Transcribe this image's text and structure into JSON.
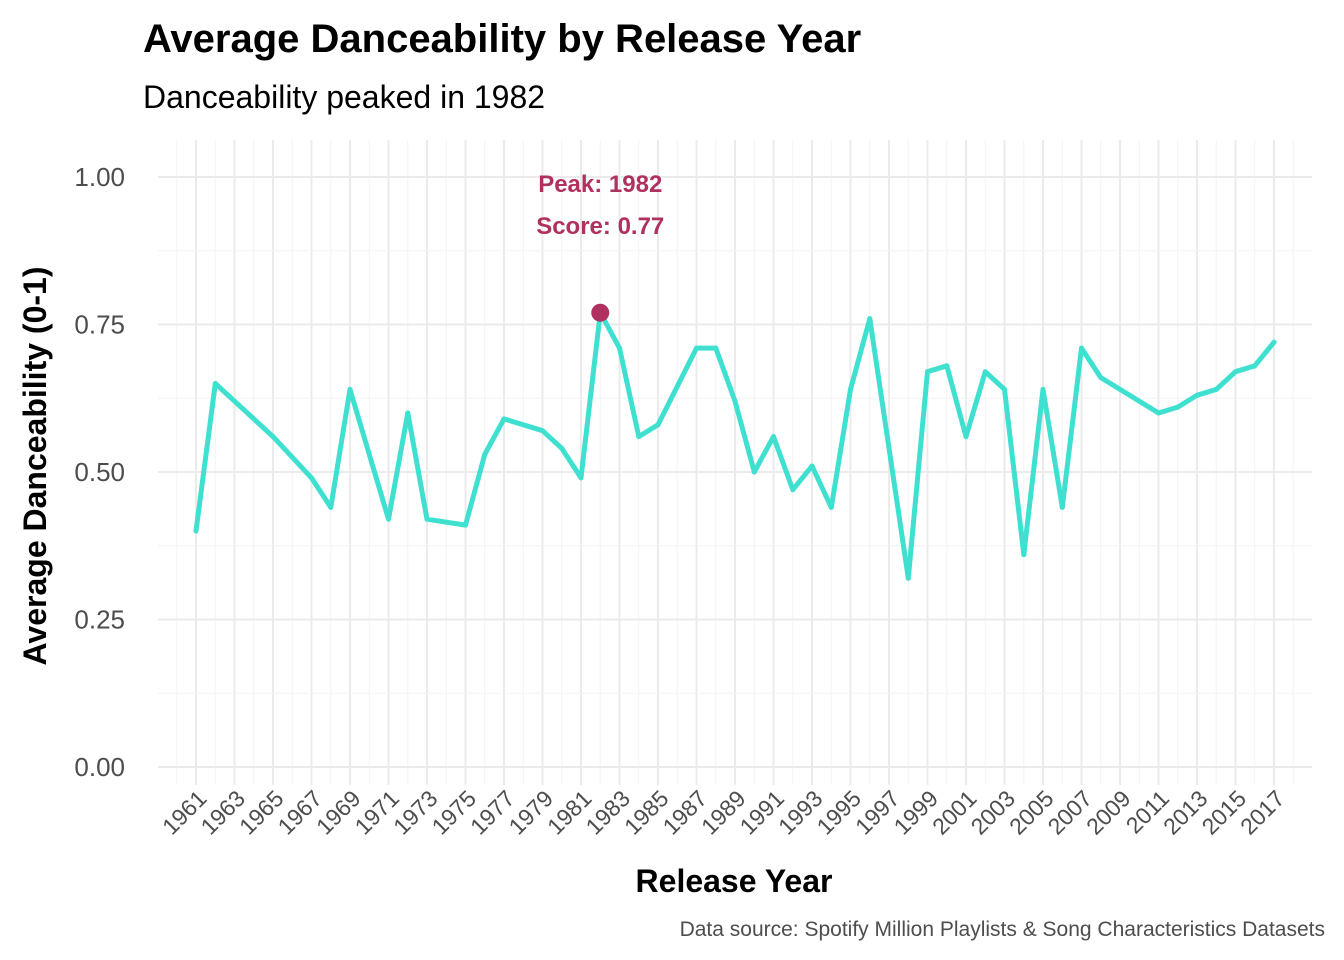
{
  "chart_data": {
    "type": "line",
    "title": "Average Danceability by Release Year",
    "subtitle": "Danceability peaked in 1982",
    "xlabel": "Release Year",
    "ylabel": "Average Danceability (0-1)",
    "caption": "Data source: Spotify Million Playlists & Song Characteristics Datasets",
    "ylim": [
      0,
      1
    ],
    "yticks": [
      "0.00",
      "0.25",
      "0.50",
      "0.75",
      "1.00"
    ],
    "xlim": [
      1961,
      2017
    ],
    "xticks": [
      "1961",
      "1963",
      "1965",
      "1967",
      "1969",
      "1971",
      "1973",
      "1975",
      "1977",
      "1979",
      "1981",
      "1983",
      "1985",
      "1987",
      "1989",
      "1991",
      "1993",
      "1995",
      "1997",
      "1999",
      "2001",
      "2003",
      "2005",
      "2007",
      "2009",
      "2011",
      "2013",
      "2015",
      "2017"
    ],
    "grid": true,
    "line_color": "#40E0D0",
    "highlight_color": "#B03060",
    "x": [
      1961,
      1962,
      1965,
      1967,
      1968,
      1969,
      1971,
      1972,
      1973,
      1975,
      1976,
      1977,
      1979,
      1980,
      1981,
      1982,
      1983,
      1984,
      1985,
      1987,
      1988,
      1989,
      1990,
      1991,
      1992,
      1993,
      1994,
      1995,
      1996,
      1998,
      1999,
      2000,
      2001,
      2002,
      2003,
      2004,
      2005,
      2006,
      2007,
      2008,
      2011,
      2012,
      2013,
      2014,
      2015,
      2016,
      2017
    ],
    "values": [
      0.4,
      0.65,
      0.56,
      0.49,
      0.44,
      0.64,
      0.42,
      0.6,
      0.42,
      0.41,
      0.53,
      0.59,
      0.57,
      0.54,
      0.49,
      0.77,
      0.71,
      0.56,
      0.58,
      0.71,
      0.71,
      0.62,
      0.5,
      0.56,
      0.47,
      0.51,
      0.44,
      0.64,
      0.76,
      0.32,
      0.67,
      0.68,
      0.56,
      0.67,
      0.64,
      0.36,
      0.64,
      0.44,
      0.71,
      0.66,
      0.6,
      0.61,
      0.63,
      0.64,
      0.67,
      0.68,
      0.72
    ],
    "peak": {
      "x": 1982,
      "y": 0.77,
      "label_line1": "Peak: 1982",
      "label_line2": "Score: 0.77"
    }
  }
}
